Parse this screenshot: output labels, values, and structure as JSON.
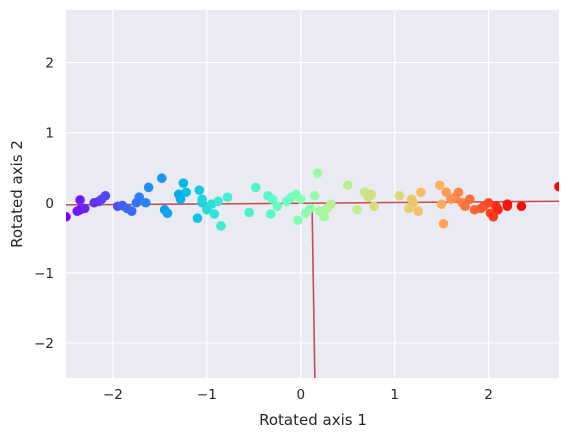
{
  "chart_data": {
    "type": "scatter",
    "xlabel": "Rotated axis 1",
    "ylabel": "Rotated axis 2",
    "xlim": [
      -2.5,
      2.75
    ],
    "ylim": [
      -2.5,
      2.75
    ],
    "grid": true,
    "background": "#eaeaf2",
    "grid_color": "#ffffff",
    "colormap": "rainbow",
    "xticks": [
      -2,
      -1,
      0,
      1,
      2
    ],
    "yticks": [
      -2,
      -1,
      0,
      1,
      2
    ],
    "xtick_labels": [
      "−2",
      "−1",
      "0",
      "1",
      "2"
    ],
    "ytick_labels": [
      "−2",
      "−1",
      "0",
      "1",
      "2"
    ],
    "axis_lines": [
      {
        "color": "#c44e52",
        "x": [
          -2.5,
          2.75
        ],
        "y": [
          -0.03,
          0.02
        ]
      },
      {
        "color": "#c44e52",
        "x": [
          0.12,
          0.15
        ],
        "y": [
          0.0,
          -2.5
        ]
      }
    ],
    "points": {
      "x": [
        -2.5,
        -2.35,
        -2.38,
        -2.35,
        -2.3,
        -2.2,
        -2.15,
        -2.12,
        -2.08,
        -1.95,
        -1.9,
        -1.85,
        -1.8,
        -1.75,
        -1.72,
        -1.65,
        -1.62,
        -1.48,
        -1.45,
        -1.42,
        -1.3,
        -1.28,
        -1.25,
        -1.22,
        -1.1,
        -1.08,
        -1.05,
        -1.05,
        -1.0,
        -0.95,
        -0.92,
        -0.88,
        -0.85,
        -0.78,
        -0.55,
        -0.48,
        -0.35,
        -0.32,
        -0.3,
        -0.25,
        -0.15,
        -0.1,
        -0.05,
        -0.03,
        0.0,
        0.05,
        0.1,
        0.15,
        0.18,
        0.2,
        0.25,
        0.28,
        0.32,
        0.5,
        0.6,
        0.68,
        0.72,
        0.75,
        0.78,
        1.05,
        1.15,
        1.18,
        1.2,
        1.25,
        1.28,
        1.48,
        1.5,
        1.52,
        1.55,
        1.6,
        1.65,
        1.68,
        1.72,
        1.75,
        1.8,
        1.85,
        1.92,
        1.95,
        2.0,
        2.02,
        2.05,
        2.08,
        2.1,
        2.2,
        2.2,
        2.35,
        2.75
      ],
      "y": [
        -0.2,
        -0.1,
        -0.12,
        0.04,
        -0.08,
        0.0,
        0.02,
        0.05,
        0.1,
        -0.05,
        -0.04,
        -0.08,
        -0.12,
        0.0,
        0.08,
        0.0,
        0.22,
        0.35,
        -0.1,
        -0.15,
        0.12,
        0.05,
        0.28,
        0.15,
        -0.22,
        0.18,
        0.0,
        0.05,
        -0.1,
        -0.02,
        -0.16,
        0.02,
        -0.33,
        0.08,
        -0.14,
        0.22,
        0.1,
        -0.16,
        0.05,
        -0.05,
        0.02,
        0.08,
        0.12,
        -0.25,
        0.05,
        -0.15,
        -0.08,
        0.1,
        0.42,
        -0.12,
        -0.2,
        -0.08,
        -0.02,
        0.25,
        -0.1,
        0.15,
        0.08,
        0.12,
        -0.05,
        0.1,
        -0.08,
        0.05,
        0.0,
        -0.12,
        0.15,
        0.25,
        -0.02,
        -0.3,
        0.15,
        0.05,
        0.08,
        0.15,
        0.0,
        -0.05,
        0.05,
        -0.1,
        -0.08,
        -0.05,
        0.0,
        -0.15,
        -0.2,
        -0.05,
        -0.1,
        -0.05,
        -0.02,
        -0.05,
        0.23
      ]
    }
  }
}
